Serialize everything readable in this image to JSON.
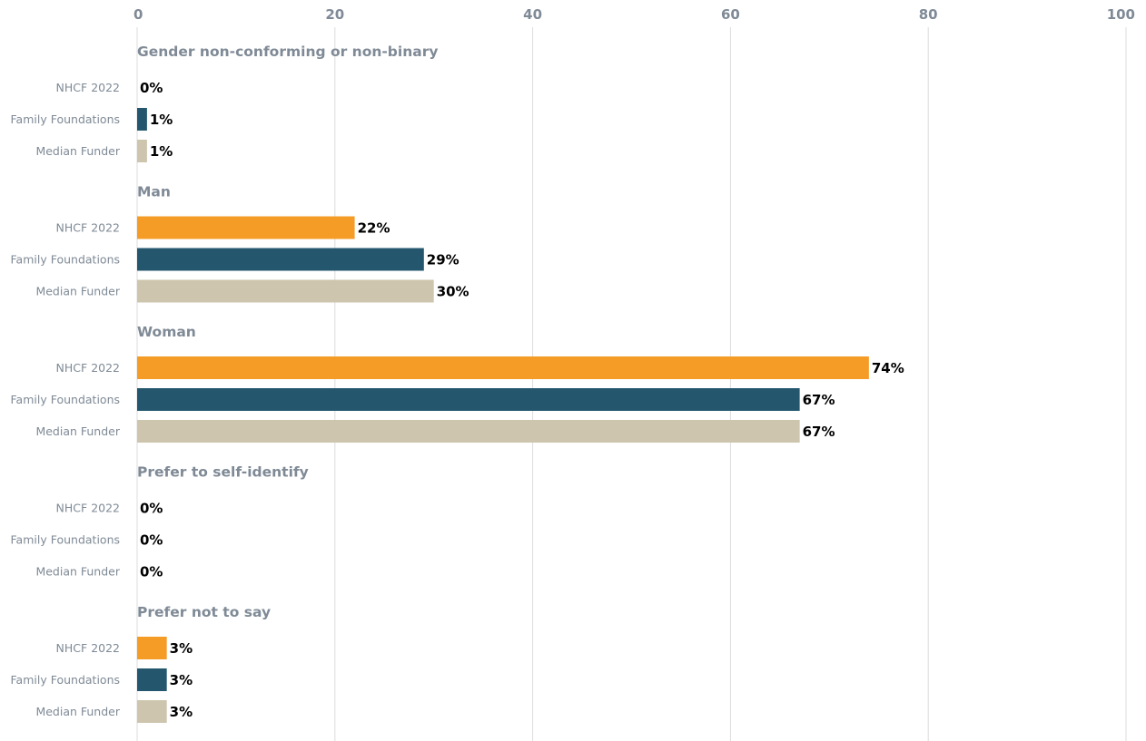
{
  "chart_data": {
    "type": "bar",
    "orientation": "horizontal",
    "xlim": [
      0,
      100
    ],
    "x_ticks": [
      0,
      20,
      40,
      60,
      80,
      100
    ],
    "grid": true,
    "value_suffix": "%",
    "series": [
      {
        "name": "NHCF 2022",
        "color": "#f59c27"
      },
      {
        "name": "Family Foundations",
        "color": "#24576e"
      },
      {
        "name": "Median Funder",
        "color": "#cdc5ae"
      }
    ],
    "groups": [
      {
        "name": "Gender non-conforming or non-binary",
        "values": [
          0,
          1,
          1
        ]
      },
      {
        "name": "Man",
        "values": [
          22,
          29,
          30
        ]
      },
      {
        "name": "Woman",
        "values": [
          74,
          67,
          67
        ]
      },
      {
        "name": "Prefer to self-identify",
        "values": [
          0,
          0,
          0
        ]
      },
      {
        "name": "Prefer not to say",
        "values": [
          3,
          3,
          3
        ]
      }
    ]
  }
}
